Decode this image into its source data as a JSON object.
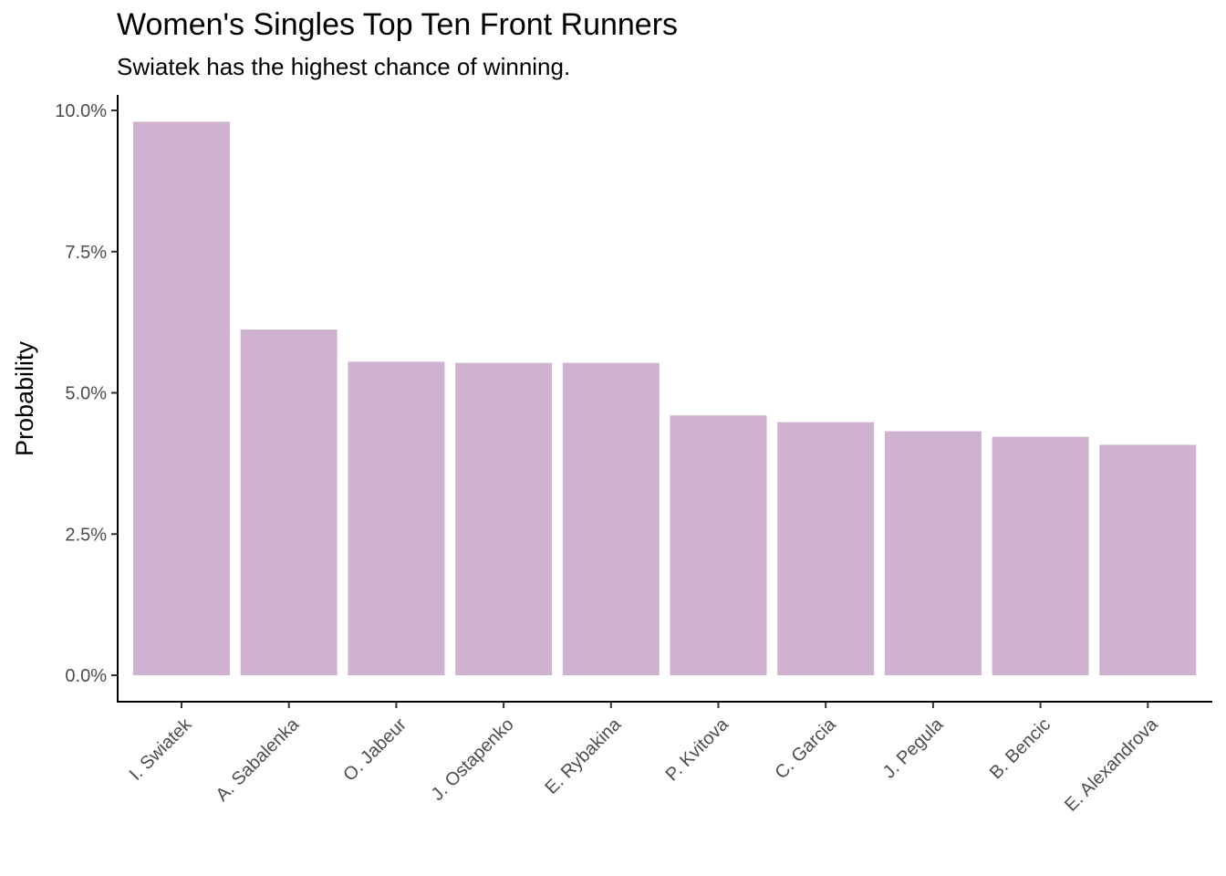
{
  "chart_data": {
    "type": "bar",
    "title": "Women's Singles Top Ten Front Runners",
    "subtitle": "Swiatek has the highest chance of winning.",
    "xlabel": "",
    "ylabel": "Probability",
    "categories": [
      "I. Swiatek",
      "A. Sabalenka",
      "O. Jabeur",
      "J. Ostapenko",
      "E. Rybakina",
      "P. Kvitova",
      "C. Garcia",
      "J. Pegula",
      "B. Bencic",
      "E. Alexandrova"
    ],
    "values": [
      9.8,
      6.12,
      5.55,
      5.53,
      5.53,
      4.6,
      4.48,
      4.32,
      4.22,
      4.08
    ],
    "ylim": [
      -0.45,
      10.3
    ],
    "yticks": [
      0,
      2.5,
      5,
      7.5,
      10
    ],
    "ytick_labels": [
      "0.0%",
      "2.5%",
      "5.0%",
      "7.5%",
      "10.0%"
    ],
    "bar_color": "#cfb2d0",
    "grid": false,
    "legend": "none"
  }
}
